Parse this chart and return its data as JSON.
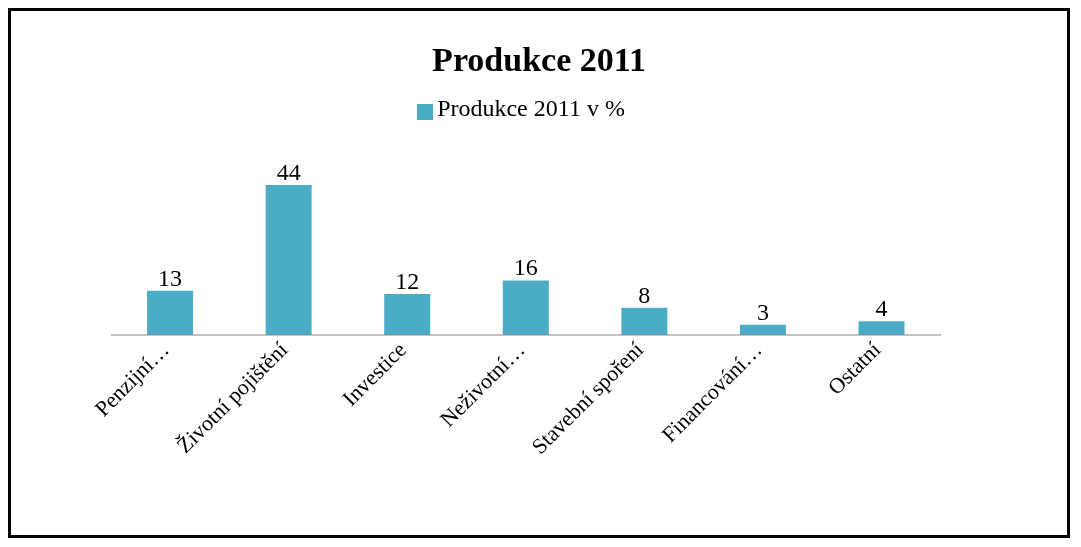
{
  "chart_data": {
    "type": "bar",
    "title": "Produkce 2011",
    "categories": [
      "Penzijní…",
      "Životní pojištění",
      "Investice",
      "Neživotní…",
      "Stavební spoření",
      "Financování…",
      "Ostatní"
    ],
    "series": [
      {
        "name": "Produkce 2011 v %",
        "color": "#4bacc6",
        "values": [
          13,
          44,
          12,
          16,
          8,
          3,
          4
        ]
      }
    ],
    "data_labels": true,
    "legend": "top",
    "grid": false
  }
}
